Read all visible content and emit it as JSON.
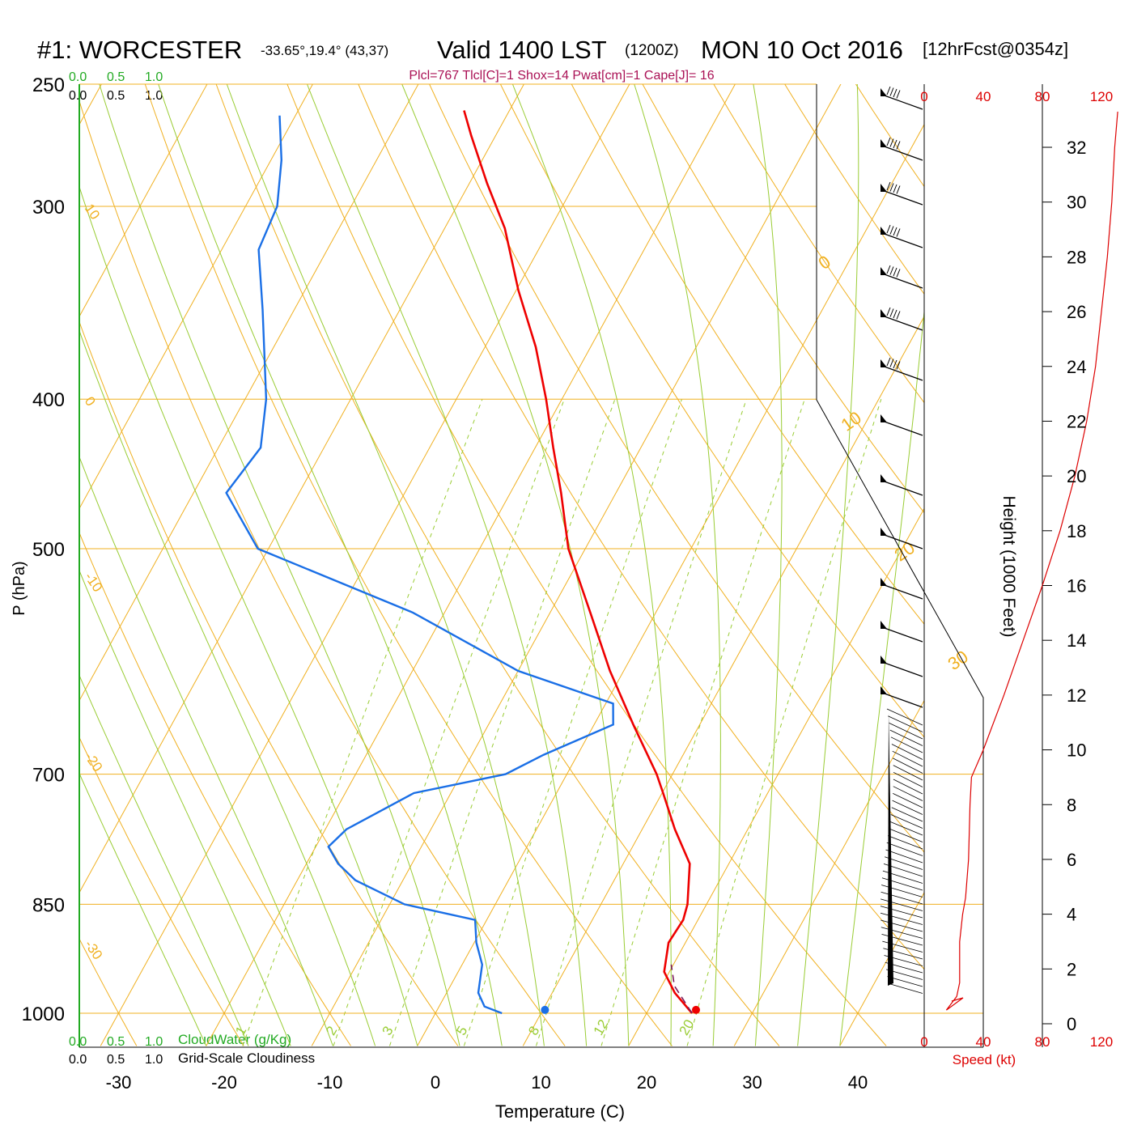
{
  "title": {
    "station": "#1: WORCESTER",
    "location": "-33.65°,19.4° (43,37)",
    "valid": "Valid 1400 LST",
    "utc": "(1200Z)",
    "date": "MON 10 Oct 2016",
    "forecast": "[12hrFcst@0354z]"
  },
  "indices": "Plcl=767 Tlcl[C]=1 Shox=14 Pwat[cm]=1 Cape[J]= 16",
  "legend": {
    "cloudwater_ticks": [
      "0.0",
      "0.5",
      "1.0"
    ],
    "cloudiness_ticks": [
      "0.0",
      "0.5",
      "1.0"
    ],
    "cloudwater_label": "CloudWater (g/Kg)",
    "cloudiness_label": "Grid-Scale Cloudiness"
  },
  "colors": {
    "temperature": "#ee0000",
    "dewpoint": "#1a6fe6",
    "isotherm": "#f0b020",
    "dry_adiabat": "#f0b020",
    "moist_adiabat": "#99cc33",
    "mixing_ratio": "#99cc33",
    "parcel": "#7a1a5a",
    "cloud": "#22aa22",
    "speed": "#dd0000",
    "indices": "#aa1155"
  },
  "speed_axis": {
    "ticks": [
      "0",
      "40",
      "80",
      "120"
    ],
    "label": "Speed (kt)"
  },
  "chart_data": {
    "type": "line",
    "xlabel": "Temperature (C)",
    "ylabel": "P (hPa)",
    "y2label": "Height (1000 Feet)",
    "x_scale": "skew-T (isotherms skewed)",
    "y_scale": "log pressure",
    "xlim": [
      -34,
      36
    ],
    "ylim": [
      1015,
      250
    ],
    "x_ticks": [
      -30,
      -20,
      -10,
      0,
      10,
      20,
      30,
      40
    ],
    "pressure_ticks": [
      250,
      300,
      400,
      500,
      700,
      850,
      1000
    ],
    "height_ticks": [
      0,
      2,
      4,
      6,
      8,
      10,
      12,
      14,
      16,
      18,
      20,
      22,
      24,
      26,
      28,
      30,
      32
    ],
    "isotherm_labels": [
      "10",
      "0",
      "-10",
      "-20",
      "-30",
      "0",
      "10",
      "20",
      "30"
    ],
    "mixing_ratio_labels": [
      "1",
      "2",
      "3",
      "5",
      "8",
      "12",
      "20"
    ],
    "series": [
      {
        "name": "Temperature",
        "points": [
          [
            1000,
            24.3
          ],
          [
            970,
            21.6
          ],
          [
            940,
            19.5
          ],
          [
            900,
            18.4
          ],
          [
            870,
            18.6
          ],
          [
            850,
            18.2
          ],
          [
            800,
            16.3
          ],
          [
            760,
            13.1
          ],
          [
            720,
            10.1
          ],
          [
            700,
            8.5
          ],
          [
            650,
            3.7
          ],
          [
            600,
            -1.3
          ],
          [
            550,
            -6.2
          ],
          [
            500,
            -11.6
          ],
          [
            460,
            -15.2
          ],
          [
            430,
            -18.3
          ],
          [
            400,
            -21.5
          ],
          [
            370,
            -25.2
          ],
          [
            340,
            -29.8
          ],
          [
            310,
            -34.3
          ],
          [
            290,
            -38.3
          ],
          [
            270,
            -42.3
          ],
          [
            260,
            -44.3
          ]
        ]
      },
      {
        "name": "Dewpoint",
        "points": [
          [
            1000,
            6.3
          ],
          [
            990,
            4.3
          ],
          [
            970,
            3.0
          ],
          [
            930,
            1.9
          ],
          [
            900,
            0.2
          ],
          [
            870,
            -1.1
          ],
          [
            850,
            -8.6
          ],
          [
            820,
            -14.5
          ],
          [
            800,
            -17.0
          ],
          [
            780,
            -18.8
          ],
          [
            760,
            -18.0
          ],
          [
            720,
            -13.5
          ],
          [
            700,
            -5.8
          ],
          [
            680,
            -3.2
          ],
          [
            650,
            1.8
          ],
          [
            630,
            0.7
          ],
          [
            600,
            -10.0
          ],
          [
            550,
            -23.0
          ],
          [
            500,
            -41.0
          ],
          [
            460,
            -46.9
          ],
          [
            430,
            -46.0
          ],
          [
            400,
            -48.0
          ],
          [
            350,
            -53.0
          ],
          [
            320,
            -56.5
          ],
          [
            300,
            -57.0
          ],
          [
            280,
            -59.0
          ],
          [
            262,
            -61.5
          ]
        ]
      },
      {
        "name": "Parcel",
        "points": [
          [
            1000,
            24.3
          ],
          [
            960,
            21.2
          ],
          [
            930,
            19.8
          ]
        ]
      }
    ],
    "surface": {
      "temperature": 24.5,
      "dewpoint": 10.2
    },
    "wind_speed_profile_kt": [
      [
        0.5,
        15
      ],
      [
        1,
        22
      ],
      [
        1.5,
        24
      ],
      [
        3,
        24
      ],
      [
        4,
        26
      ],
      [
        4.6,
        28
      ],
      [
        6,
        30
      ],
      [
        8,
        31
      ],
      [
        9,
        32
      ],
      [
        10,
        40
      ],
      [
        12,
        54
      ],
      [
        14,
        67
      ],
      [
        16,
        80
      ],
      [
        18,
        92
      ],
      [
        20,
        102
      ],
      [
        22,
        110
      ],
      [
        24,
        116
      ],
      [
        26,
        120
      ],
      [
        28,
        124
      ],
      [
        30,
        127
      ],
      [
        32,
        129
      ],
      [
        33.3,
        131
      ]
    ]
  }
}
